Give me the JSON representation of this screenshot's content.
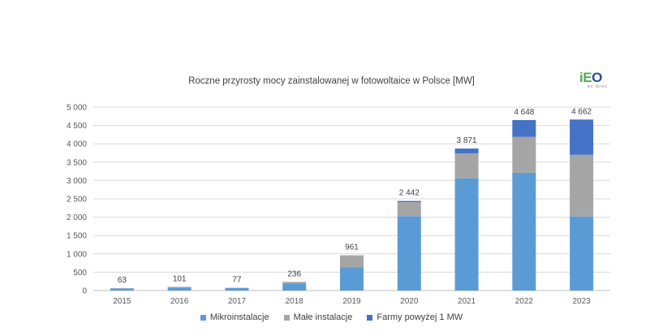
{
  "chart_data": {
    "type": "bar",
    "stacked": true,
    "title": "Roczne przyrosty mocy zainstalowanej w fotowoltaice w Polsce [MW]",
    "categories": [
      "2015",
      "2016",
      "2017",
      "2018",
      "2019",
      "2020",
      "2021",
      "2022",
      "2023"
    ],
    "series": [
      {
        "name": "Mikroinstalacje",
        "color": "#5b9bd5",
        "values": [
          55,
          85,
          70,
          190,
          630,
          2030,
          3060,
          3210,
          2020
        ]
      },
      {
        "name": "Małe instalacje",
        "color": "#a5a5a5",
        "values": [
          8,
          16,
          7,
          46,
          331,
          380,
          680,
          980,
          1680
        ]
      },
      {
        "name": "Farmy powyżej 1 MW",
        "color": "#4472c4",
        "values": [
          0,
          0,
          0,
          0,
          0,
          32,
          131,
          458,
          962
        ]
      }
    ],
    "totals": [
      63,
      101,
      77,
      236,
      961,
      2442,
      3871,
      4648,
      4662
    ],
    "total_labels": [
      "63",
      "101",
      "77",
      "236",
      "961",
      "2 442",
      "3 871",
      "4 648",
      "4 662"
    ],
    "ylim": [
      0,
      5000
    ],
    "yticks": [
      0,
      500,
      1000,
      1500,
      2000,
      2500,
      3000,
      3500,
      4000,
      4500,
      5000
    ],
    "ytick_labels": [
      "0",
      "500",
      "1 000",
      "1 500",
      "2 000",
      "2 500",
      "3 000",
      "3 500",
      "4 000",
      "4 500",
      "5 000"
    ],
    "grid": true,
    "legend_position": "bottom"
  },
  "logo": {
    "text": "iEO",
    "subtext": "ec brec",
    "color_green": "#4caf50",
    "color_blue": "#1f4e9c"
  }
}
